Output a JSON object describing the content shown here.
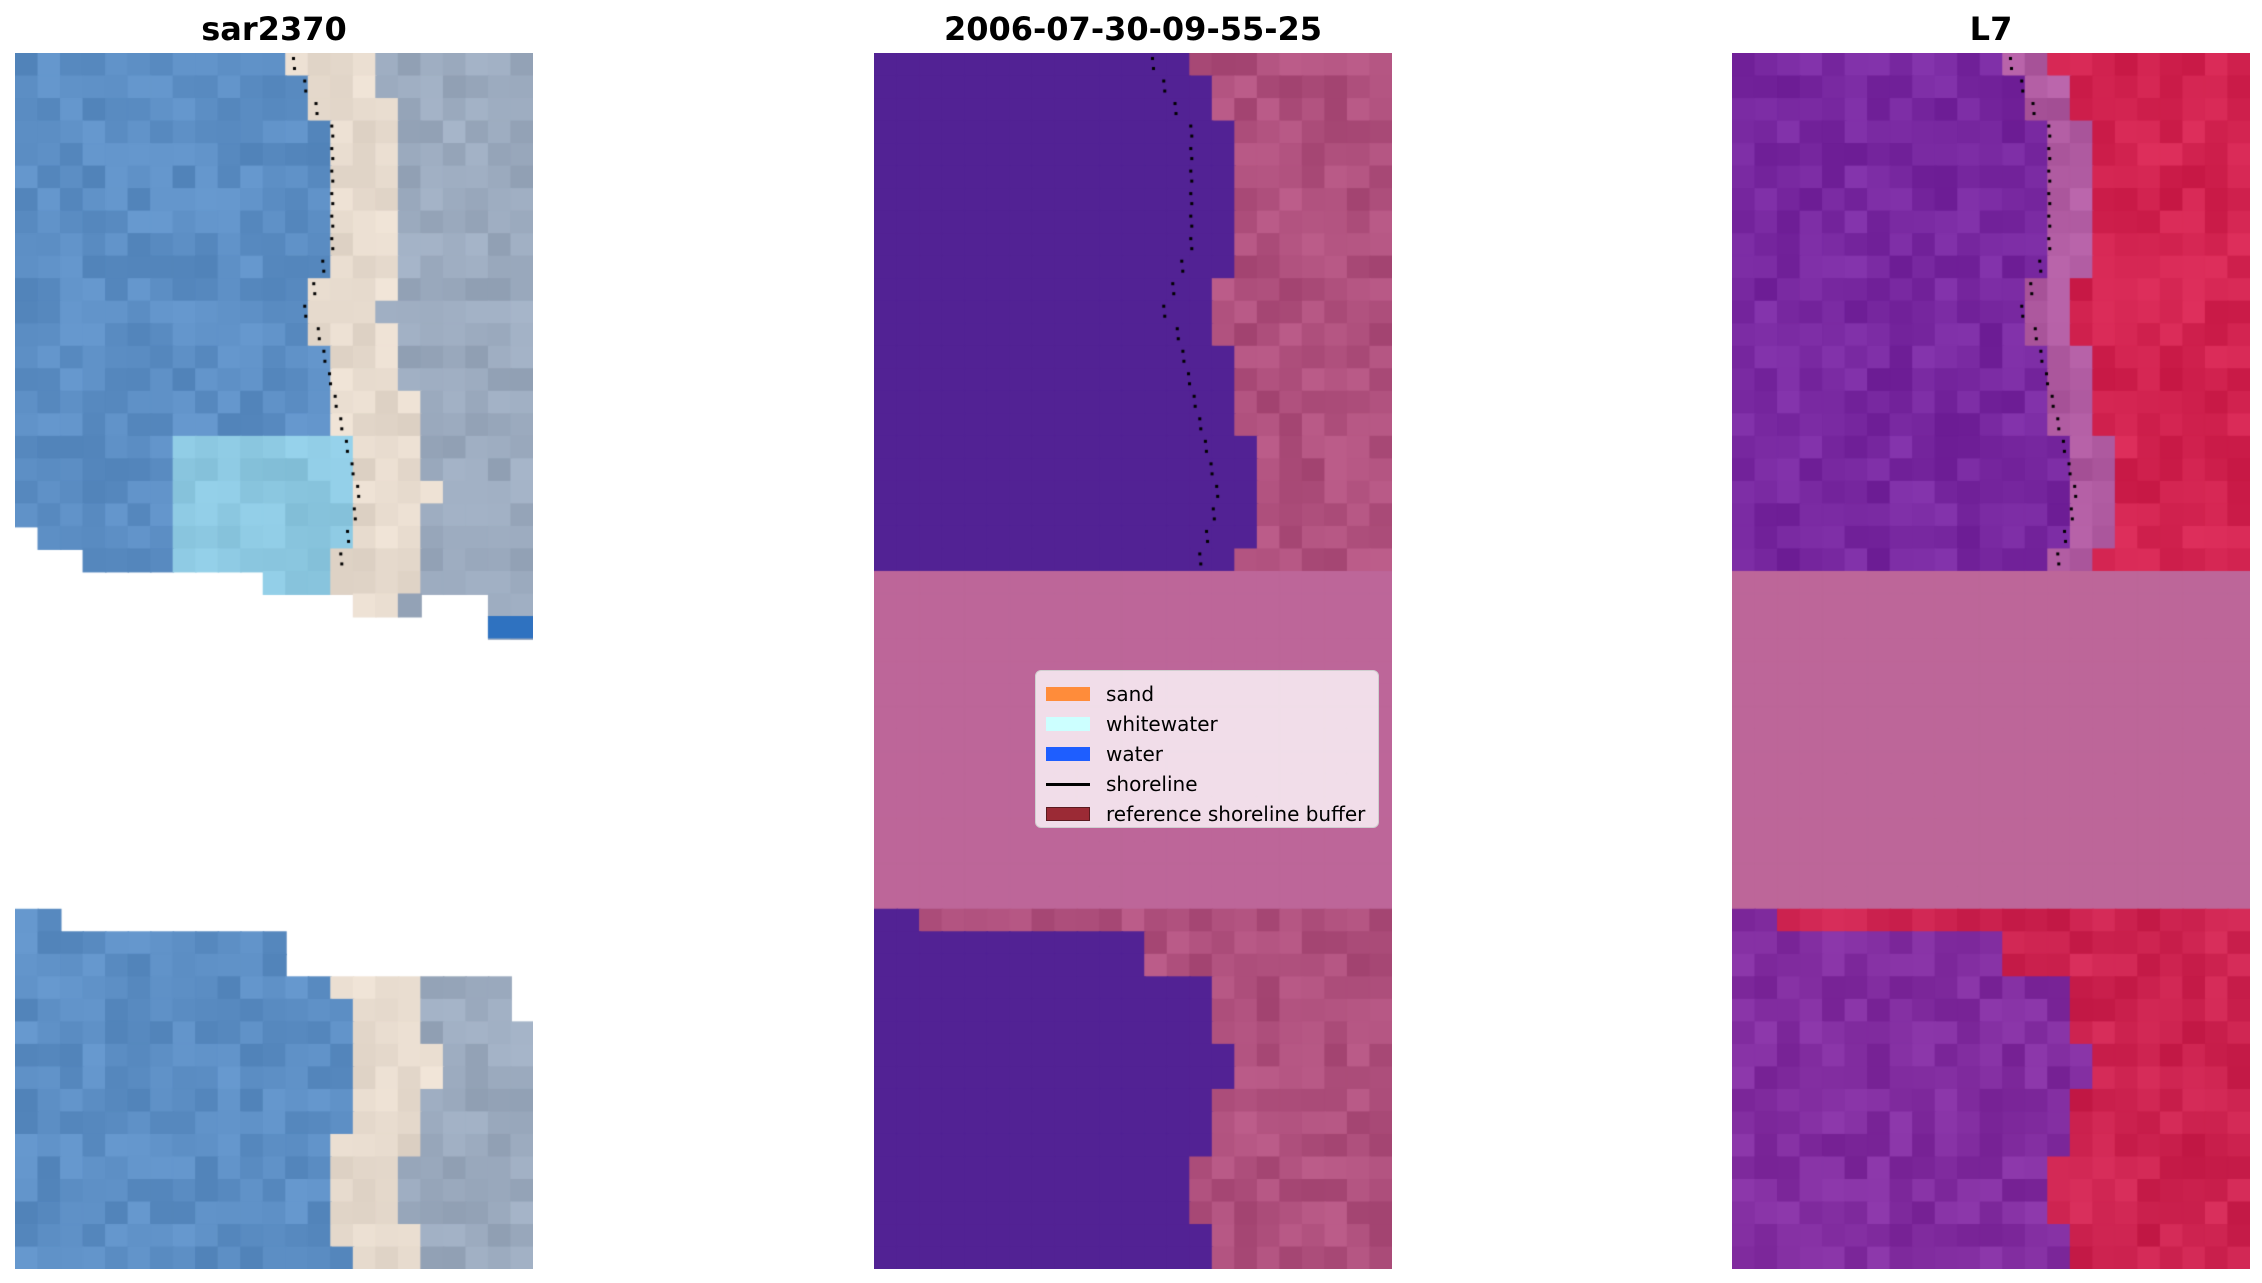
{
  "panels": [
    {
      "title": "sar2370"
    },
    {
      "title": "2006-07-30-09-55-25"
    },
    {
      "title": "L7"
    }
  ],
  "legend": {
    "items": [
      {
        "label": "sand",
        "type": "patch",
        "color": "#ff8c3a"
      },
      {
        "label": "whitewater",
        "type": "patch",
        "color": "#ccffff"
      },
      {
        "label": "water",
        "type": "patch",
        "color": "#1e5eff"
      },
      {
        "label": "shoreline",
        "type": "line",
        "color": "#000000"
      },
      {
        "label": "reference shoreline buffer",
        "type": "patch",
        "color": "#9b2a35"
      }
    ]
  }
}
